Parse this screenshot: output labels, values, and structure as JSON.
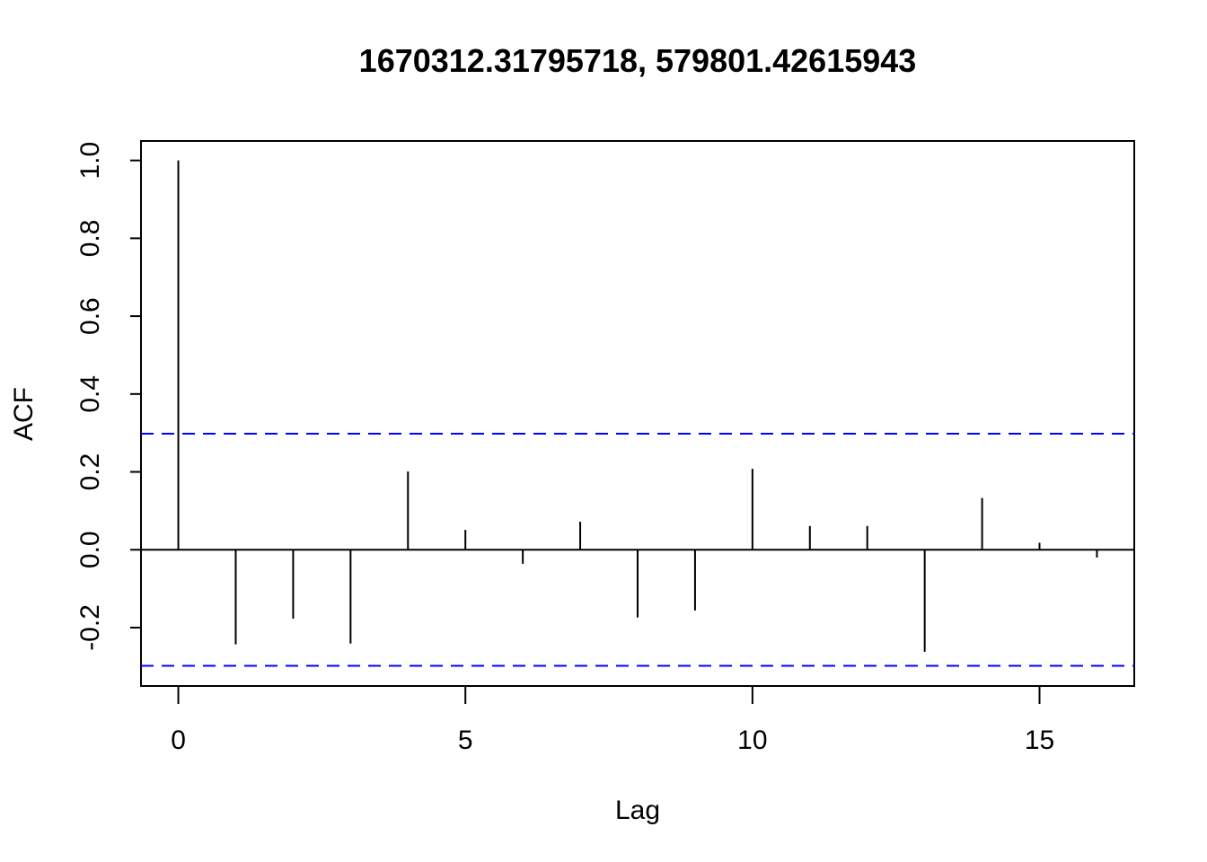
{
  "chart_data": {
    "type": "bar",
    "title": "1670312.31795718, 579801.42615943",
    "xlabel": "Lag",
    "ylabel": "ACF",
    "xlim": [
      -0.65,
      16.65
    ],
    "ylim": [
      -0.35,
      1.05
    ],
    "xticks": [
      0,
      5,
      10,
      15
    ],
    "yticks": [
      -0.2,
      0.0,
      0.2,
      0.4,
      0.6,
      0.8,
      1.0
    ],
    "xtick_labels": [
      "0",
      "5",
      "10",
      "15"
    ],
    "ytick_labels": [
      "-0.2",
      "0.0",
      "0.2",
      "0.4",
      "0.6",
      "0.8",
      "1.0"
    ],
    "lags": [
      0,
      1,
      2,
      3,
      4,
      5,
      6,
      7,
      8,
      9,
      10,
      11,
      12,
      13,
      14,
      15,
      16
    ],
    "values": [
      1.0,
      -0.243,
      -0.177,
      -0.241,
      0.201,
      0.051,
      -0.036,
      0.072,
      -0.174,
      -0.156,
      0.208,
      0.061,
      0.061,
      -0.262,
      0.133,
      0.018,
      -0.02
    ],
    "confidence_bounds": [
      0.298,
      -0.298
    ],
    "colors": {
      "bars": "#000000",
      "confidence": "#0000ff",
      "axis": "#000000"
    },
    "grid": false
  }
}
